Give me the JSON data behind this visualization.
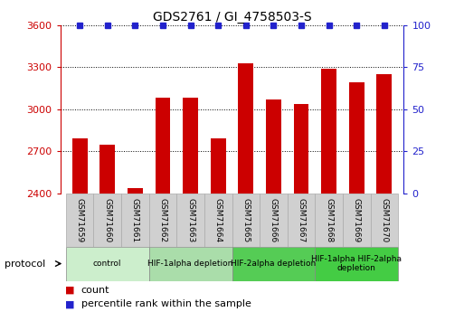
{
  "title": "GDS2761 / GI_4758503-S",
  "samples": [
    "GSM71659",
    "GSM71660",
    "GSM71661",
    "GSM71662",
    "GSM71663",
    "GSM71664",
    "GSM71665",
    "GSM71666",
    "GSM71667",
    "GSM71668",
    "GSM71669",
    "GSM71670"
  ],
  "counts": [
    2790,
    2750,
    2440,
    3080,
    3080,
    2790,
    3330,
    3070,
    3040,
    3290,
    3190,
    3250
  ],
  "percentile_ranks": [
    100,
    100,
    100,
    100,
    100,
    100,
    100,
    100,
    100,
    100,
    100,
    100
  ],
  "bar_color": "#cc0000",
  "dot_color": "#2222cc",
  "ylim_left": [
    2400,
    3600
  ],
  "ylim_right": [
    0,
    100
  ],
  "yticks_left": [
    2400,
    2700,
    3000,
    3300,
    3600
  ],
  "yticks_right": [
    0,
    25,
    50,
    75,
    100
  ],
  "protocol_groups": [
    {
      "label": "control",
      "start": 0,
      "end": 3,
      "color": "#cceecc"
    },
    {
      "label": "HIF-1alpha depletion",
      "start": 3,
      "end": 6,
      "color": "#aaddaa"
    },
    {
      "label": "HIF-2alpha depletion",
      "start": 6,
      "end": 9,
      "color": "#55cc55"
    },
    {
      "label": "HIF-1alpha HIF-2alpha\ndepletion",
      "start": 9,
      "end": 12,
      "color": "#44cc44"
    }
  ],
  "legend_items": [
    {
      "label": "count",
      "color": "#cc0000"
    },
    {
      "label": "percentile rank within the sample",
      "color": "#2222cc"
    }
  ],
  "background_color": "#ffffff",
  "grid_color": "#555555",
  "axis_left_color": "#cc0000",
  "axis_right_color": "#2222cc",
  "sample_label_bg": "#d0d0d0",
  "sample_label_edge": "#aaaaaa"
}
